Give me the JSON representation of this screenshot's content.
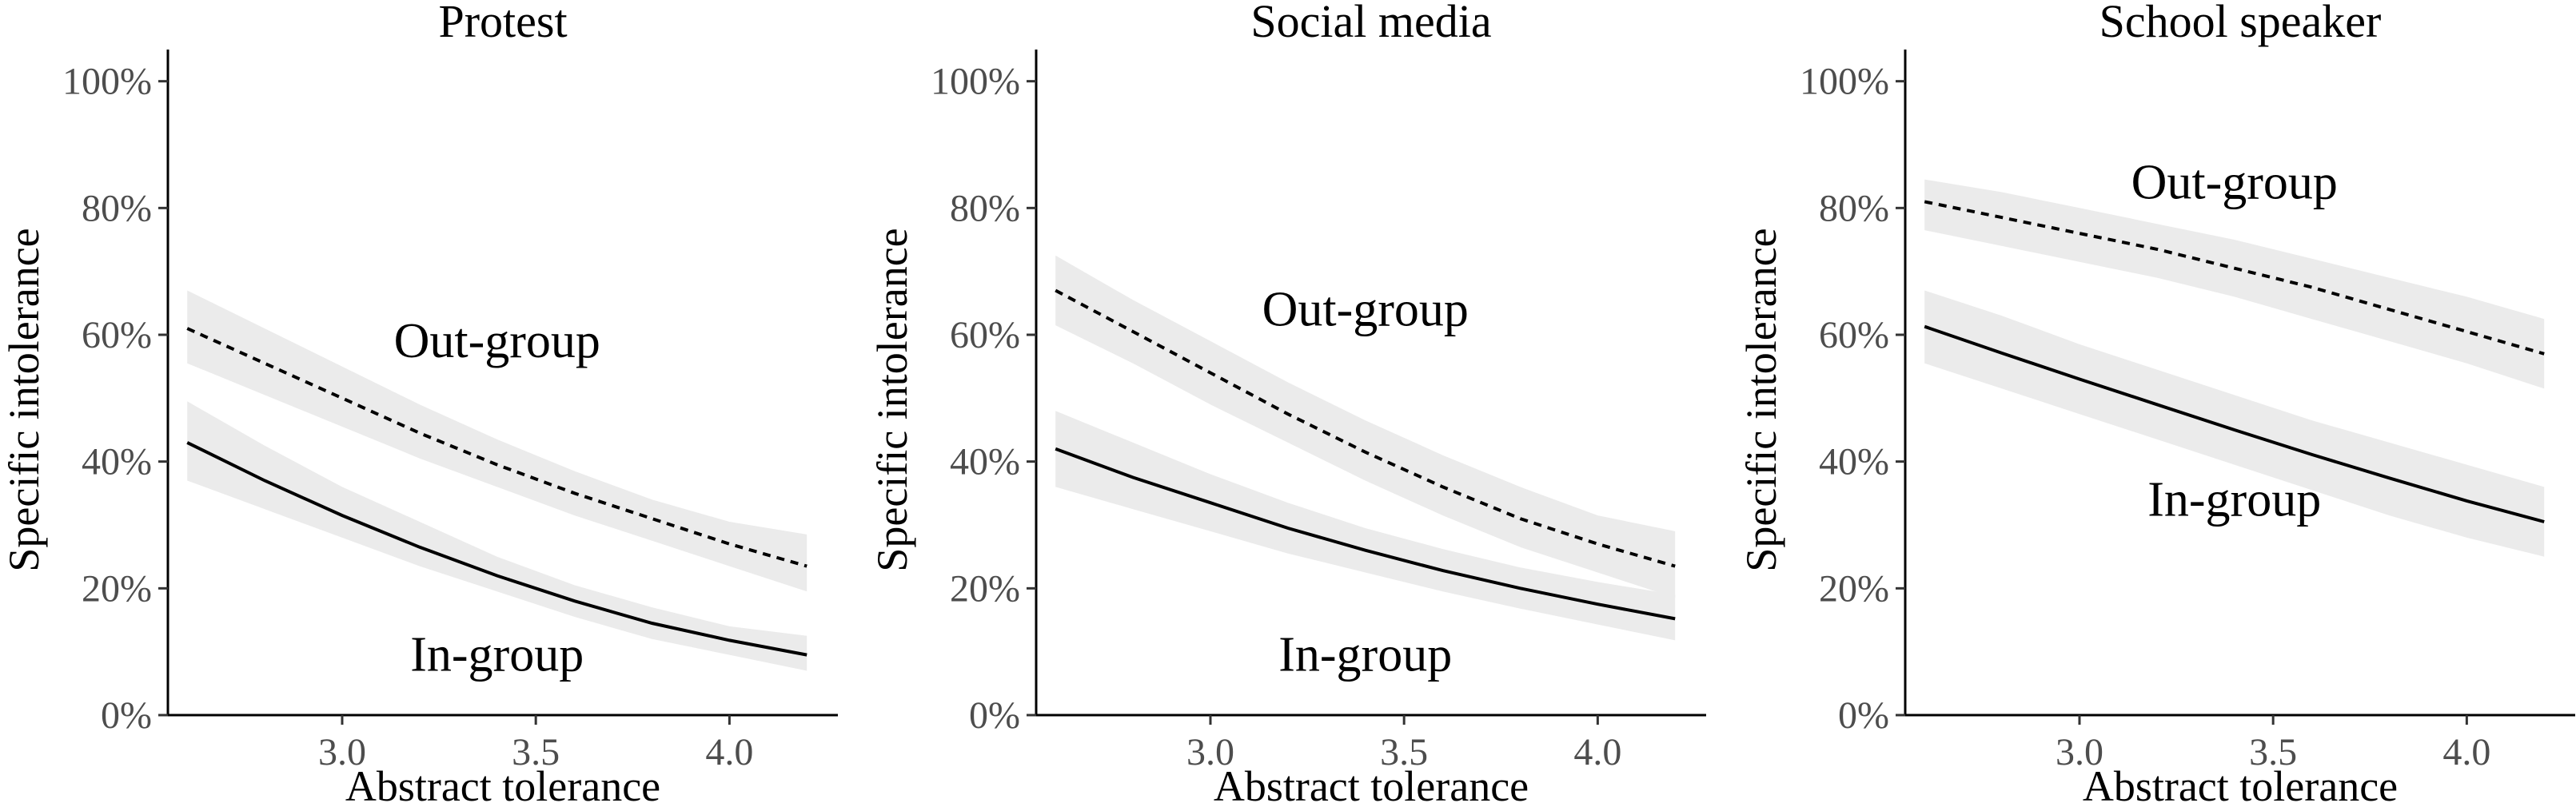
{
  "chart_data": [
    {
      "type": "line",
      "title": "Protest",
      "xlabel": "Abstract tolerance",
      "ylabel": "Specific intolerance",
      "x_ticks": [
        "3.0",
        "3.5",
        "4.0"
      ],
      "y_ticks": [
        "0%",
        "20%",
        "40%",
        "60%",
        "80%",
        "100%"
      ],
      "xlim": [
        2.55,
        4.28
      ],
      "ylim": [
        0,
        1.05
      ],
      "grid": false,
      "x": [
        2.6,
        2.8,
        3.0,
        3.2,
        3.4,
        3.6,
        3.8,
        4.0,
        4.2
      ],
      "series": [
        {
          "style": "dashed",
          "values": [
            0.61,
            0.555,
            0.5,
            0.445,
            0.395,
            0.35,
            0.31,
            0.27,
            0.235
          ],
          "lower": [
            0.555,
            0.505,
            0.455,
            0.405,
            0.36,
            0.315,
            0.275,
            0.235,
            0.195
          ],
          "upper": [
            0.67,
            0.61,
            0.55,
            0.49,
            0.435,
            0.385,
            0.34,
            0.305,
            0.285
          ]
        },
        {
          "style": "solid",
          "values": [
            0.43,
            0.37,
            0.315,
            0.265,
            0.22,
            0.18,
            0.145,
            0.118,
            0.095
          ],
          "lower": [
            0.37,
            0.325,
            0.28,
            0.235,
            0.195,
            0.155,
            0.12,
            0.095,
            0.07
          ],
          "upper": [
            0.495,
            0.425,
            0.36,
            0.305,
            0.25,
            0.205,
            0.17,
            0.14,
            0.125
          ]
        }
      ],
      "annotations": [
        {
          "text": "Out-group",
          "x": 3.4,
          "y": 0.59
        },
        {
          "text": "In-group",
          "x": 3.4,
          "y": 0.095
        }
      ]
    },
    {
      "type": "line",
      "title": "Social media",
      "xlabel": "Abstract tolerance",
      "ylabel": "Specific intolerance",
      "x_ticks": [
        "3.0",
        "3.5",
        "4.0"
      ],
      "y_ticks": [
        "0%",
        "20%",
        "40%",
        "60%",
        "80%",
        "100%"
      ],
      "xlim": [
        2.55,
        4.28
      ],
      "ylim": [
        0,
        1.05
      ],
      "grid": false,
      "x": [
        2.6,
        2.8,
        3.0,
        3.2,
        3.4,
        3.6,
        3.8,
        4.0,
        4.2
      ],
      "series": [
        {
          "style": "dashed",
          "values": [
            0.67,
            0.605,
            0.54,
            0.475,
            0.415,
            0.36,
            0.31,
            0.27,
            0.235
          ],
          "lower": [
            0.615,
            0.555,
            0.49,
            0.43,
            0.37,
            0.315,
            0.265,
            0.225,
            0.185
          ],
          "upper": [
            0.725,
            0.655,
            0.59,
            0.525,
            0.465,
            0.41,
            0.36,
            0.315,
            0.29
          ]
        },
        {
          "style": "solid",
          "values": [
            0.42,
            0.375,
            0.335,
            0.295,
            0.26,
            0.228,
            0.2,
            0.175,
            0.152
          ],
          "lower": [
            0.36,
            0.325,
            0.29,
            0.255,
            0.225,
            0.195,
            0.168,
            0.143,
            0.118
          ],
          "upper": [
            0.48,
            0.43,
            0.38,
            0.335,
            0.295,
            0.262,
            0.233,
            0.21,
            0.19
          ]
        }
      ],
      "annotations": [
        {
          "text": "Out-group",
          "x": 3.4,
          "y": 0.64
        },
        {
          "text": "In-group",
          "x": 3.4,
          "y": 0.095
        }
      ]
    },
    {
      "type": "line",
      "title": "School speaker",
      "xlabel": "Abstract tolerance",
      "ylabel": "Specific intolerance",
      "x_ticks": [
        "3.0",
        "3.5",
        "4.0"
      ],
      "y_ticks": [
        "0%",
        "20%",
        "40%",
        "60%",
        "80%",
        "100%"
      ],
      "xlim": [
        2.55,
        4.28
      ],
      "ylim": [
        0,
        1.05
      ],
      "grid": false,
      "x": [
        2.6,
        2.8,
        3.0,
        3.2,
        3.4,
        3.6,
        3.8,
        4.0,
        4.2
      ],
      "series": [
        {
          "style": "dashed",
          "values": [
            0.81,
            0.785,
            0.76,
            0.735,
            0.705,
            0.675,
            0.64,
            0.605,
            0.57
          ],
          "lower": [
            0.765,
            0.74,
            0.715,
            0.69,
            0.66,
            0.625,
            0.59,
            0.555,
            0.515
          ],
          "upper": [
            0.845,
            0.825,
            0.8,
            0.775,
            0.75,
            0.72,
            0.69,
            0.66,
            0.625
          ]
        },
        {
          "style": "solid",
          "values": [
            0.613,
            0.571,
            0.53,
            0.49,
            0.45,
            0.411,
            0.374,
            0.338,
            0.305
          ],
          "lower": [
            0.555,
            0.515,
            0.475,
            0.435,
            0.395,
            0.355,
            0.315,
            0.28,
            0.25
          ],
          "upper": [
            0.67,
            0.63,
            0.585,
            0.545,
            0.505,
            0.465,
            0.43,
            0.395,
            0.36
          ]
        }
      ],
      "annotations": [
        {
          "text": "Out-group",
          "x": 3.4,
          "y": 0.84
        },
        {
          "text": "In-group",
          "x": 3.4,
          "y": 0.34
        }
      ]
    }
  ]
}
